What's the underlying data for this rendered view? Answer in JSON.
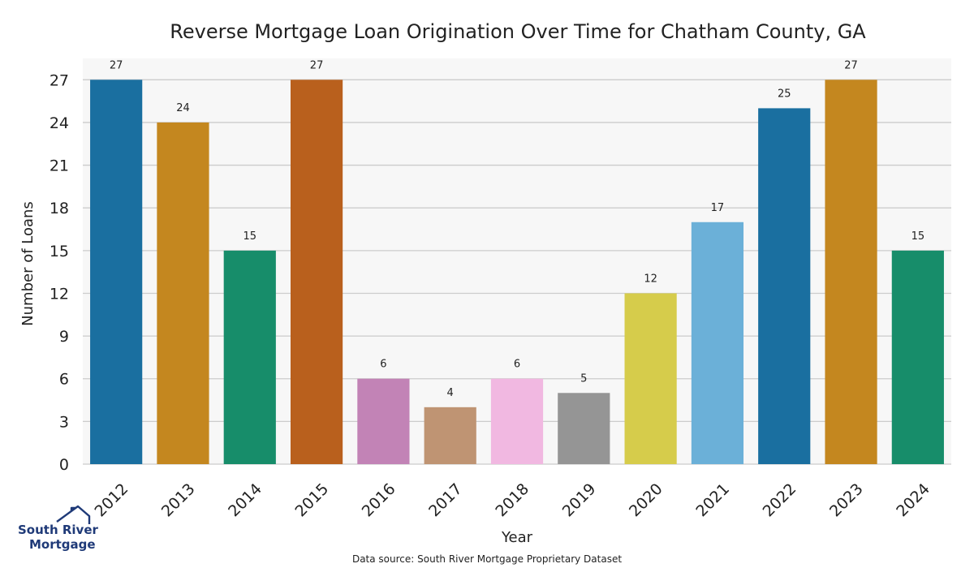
{
  "chart_data": {
    "type": "bar",
    "title": "Reverse Mortgage Loan Origination Over Time for Chatham County, GA",
    "xlabel": "Year",
    "ylabel": "Number of Loans",
    "categories": [
      "2012",
      "2013",
      "2014",
      "2015",
      "2016",
      "2017",
      "2018",
      "2019",
      "2020",
      "2021",
      "2022",
      "2023",
      "2024"
    ],
    "values": [
      27,
      24,
      15,
      27,
      6,
      4,
      6,
      5,
      12,
      17,
      25,
      27,
      15
    ],
    "colors": [
      "#1a6fa0",
      "#c4871f",
      "#178d6a",
      "#b9601d",
      "#c283b6",
      "#bf9473",
      "#f1b8e1",
      "#959595",
      "#d6cc4b",
      "#6bb0d8",
      "#1a6fa0",
      "#c4871f",
      "#178d6a"
    ],
    "ylim": [
      0,
      28.5
    ],
    "yticks": [
      0,
      3,
      6,
      9,
      12,
      15,
      18,
      21,
      24,
      27
    ],
    "grid": true,
    "legend": "none"
  },
  "footer": {
    "source": "Data source: South River Mortgage Proprietary Dataset"
  },
  "logo": {
    "line1": "South River",
    "line2": "Mortgage"
  }
}
